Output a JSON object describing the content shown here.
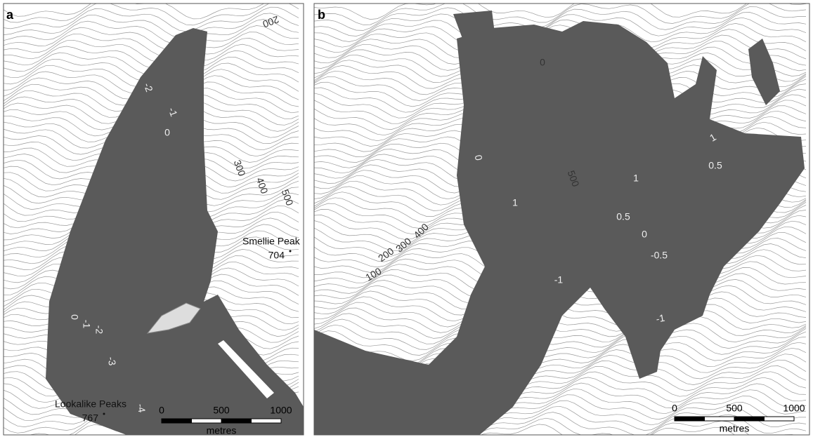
{
  "panels": [
    {
      "label": "a",
      "contour_labels": [
        "-2",
        "-1",
        "0",
        "200",
        "300",
        "400",
        "500",
        "0",
        "-1",
        "-2",
        "-3",
        "-4"
      ],
      "peaks": [
        {
          "name": "Smellie Peak",
          "elevation": "704"
        },
        {
          "name": "Lookalike Peaks",
          "elevation": "767"
        }
      ],
      "scale": {
        "ticks": [
          "0",
          "500",
          "1000"
        ],
        "unit": "metres"
      }
    },
    {
      "label": "b",
      "contour_labels": [
        "0",
        "0",
        "500",
        "1",
        "1",
        "1",
        "0.5",
        "0.5",
        "0",
        "-0.5",
        "-1",
        "-1",
        "100",
        "200",
        "300",
        "400"
      ],
      "peaks": [],
      "scale": {
        "ticks": [
          "0",
          "500",
          "1000"
        ],
        "unit": "metres"
      }
    }
  ]
}
